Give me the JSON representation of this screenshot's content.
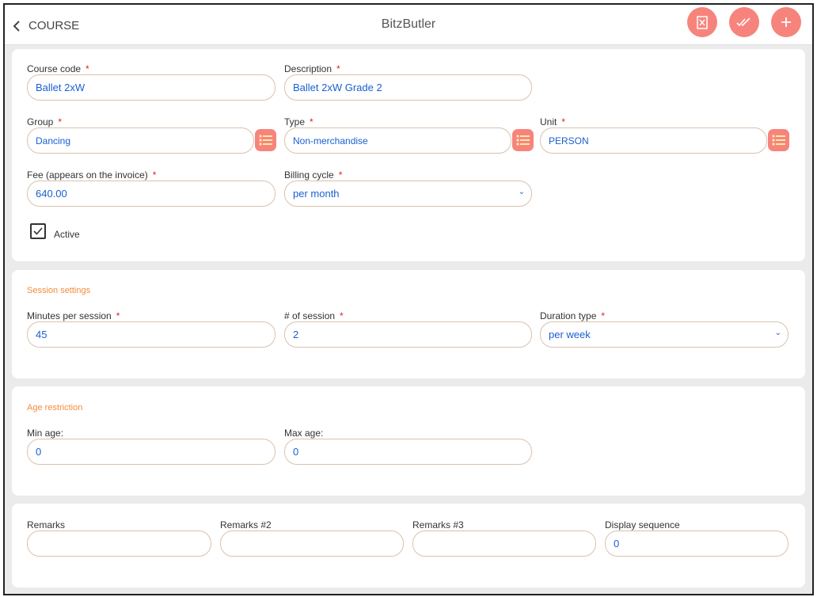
{
  "header": {
    "back_label": "COURSE",
    "title": "BitzButler",
    "actions": [
      "delete-icon",
      "approve-icon",
      "add-icon"
    ]
  },
  "colors": {
    "accent": "#f7847c",
    "section": "#f58b3c",
    "value": "#1a5fd1"
  },
  "general": {
    "course_code": {
      "label": "Course code",
      "value": "Ballet 2xW"
    },
    "description": {
      "label": "Description",
      "value": "Ballet 2xW Grade 2"
    },
    "group": {
      "label": "Group",
      "value": "Dancing"
    },
    "type": {
      "label": "Type",
      "value": "Non-merchandise"
    },
    "unit": {
      "label": "Unit",
      "value": "PERSON"
    },
    "fee": {
      "label": "Fee (appears on the invoice)",
      "value": "640.00"
    },
    "billing_cycle": {
      "label": "Billing cycle",
      "value": "per month"
    },
    "active": {
      "label": "Active",
      "checked": true
    }
  },
  "session": {
    "title": "Session settings",
    "minutes": {
      "label": "Minutes per session",
      "value": "45"
    },
    "sessions": {
      "label": "# of session",
      "value": "2"
    },
    "duration_type": {
      "label": "Duration type",
      "value": "per week"
    }
  },
  "age": {
    "title": "Age restriction",
    "min": {
      "label": "Min age:",
      "value": "0"
    },
    "max": {
      "label": "Max age:",
      "value": "0"
    }
  },
  "remarks": {
    "r1": {
      "label": "Remarks",
      "value": ""
    },
    "r2": {
      "label": "Remarks #2",
      "value": ""
    },
    "r3": {
      "label": "Remarks #3",
      "value": ""
    },
    "seq": {
      "label": "Display sequence",
      "value": "0"
    }
  },
  "required_mark": "*"
}
